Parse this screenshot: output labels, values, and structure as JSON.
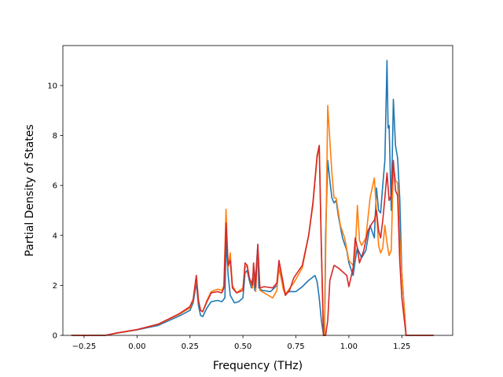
{
  "chart_data": {
    "type": "line",
    "xlabel": "Frequency (THz)",
    "ylabel": "Partial Density of States",
    "xlim": [
      -0.35,
      1.49
    ],
    "ylim": [
      0,
      11.6
    ],
    "xticks": [
      -0.25,
      0.0,
      0.25,
      0.5,
      0.75,
      1.0,
      1.25
    ],
    "xtick_labels": [
      "−0.25",
      "0.00",
      "0.25",
      "0.50",
      "0.75",
      "1.00",
      "1.25"
    ],
    "yticks": [
      0,
      2,
      4,
      6,
      8,
      10
    ],
    "ytick_labels": [
      "0",
      "2",
      "4",
      "6",
      "8",
      "10"
    ],
    "grid": false,
    "series": [
      {
        "color": "#1f77b4",
        "points": [
          [
            -0.31,
            0
          ],
          [
            -0.15,
            0
          ],
          [
            -0.1,
            0.08
          ],
          [
            0,
            0.22
          ],
          [
            0.1,
            0.4
          ],
          [
            0.2,
            0.78
          ],
          [
            0.25,
            1.0
          ],
          [
            0.265,
            1.3
          ],
          [
            0.28,
            2.1
          ],
          [
            0.29,
            1.2
          ],
          [
            0.3,
            0.8
          ],
          [
            0.31,
            0.75
          ],
          [
            0.33,
            1.1
          ],
          [
            0.35,
            1.35
          ],
          [
            0.38,
            1.4
          ],
          [
            0.4,
            1.35
          ],
          [
            0.415,
            1.5
          ],
          [
            0.42,
            3.8
          ],
          [
            0.43,
            2.4
          ],
          [
            0.44,
            1.6
          ],
          [
            0.46,
            1.3
          ],
          [
            0.48,
            1.35
          ],
          [
            0.5,
            1.5
          ],
          [
            0.51,
            2.5
          ],
          [
            0.52,
            2.6
          ],
          [
            0.53,
            2.2
          ],
          [
            0.54,
            1.9
          ],
          [
            0.55,
            2.6
          ],
          [
            0.555,
            1.8
          ],
          [
            0.57,
            3.6
          ],
          [
            0.575,
            1.9
          ],
          [
            0.59,
            1.8
          ],
          [
            0.63,
            1.75
          ],
          [
            0.66,
            2.0
          ],
          [
            0.67,
            2.7
          ],
          [
            0.69,
            1.9
          ],
          [
            0.7,
            1.7
          ],
          [
            0.72,
            1.75
          ],
          [
            0.75,
            1.75
          ],
          [
            0.78,
            1.95
          ],
          [
            0.81,
            2.2
          ],
          [
            0.84,
            2.4
          ],
          [
            0.85,
            2.15
          ],
          [
            0.86,
            1.5
          ],
          [
            0.87,
            0.6
          ],
          [
            0.88,
            0
          ],
          [
            0.885,
            0
          ],
          [
            0.89,
            4.0
          ],
          [
            0.9,
            7.0
          ],
          [
            0.91,
            6.2
          ],
          [
            0.92,
            5.5
          ],
          [
            0.93,
            5.3
          ],
          [
            0.94,
            5.4
          ],
          [
            0.95,
            4.8
          ],
          [
            0.97,
            3.9
          ],
          [
            0.99,
            3.4
          ],
          [
            1.0,
            2.9
          ],
          [
            1.02,
            2.4
          ],
          [
            1.03,
            3.0
          ],
          [
            1.04,
            3.5
          ],
          [
            1.05,
            3.3
          ],
          [
            1.06,
            3.1
          ],
          [
            1.08,
            3.4
          ],
          [
            1.1,
            4.4
          ],
          [
            1.12,
            3.9
          ],
          [
            1.13,
            5.9
          ],
          [
            1.14,
            5.0
          ],
          [
            1.15,
            4.9
          ],
          [
            1.16,
            6.0
          ],
          [
            1.17,
            7.0
          ],
          [
            1.18,
            11.0
          ],
          [
            1.185,
            8.3
          ],
          [
            1.19,
            8.4
          ],
          [
            1.2,
            5.0
          ],
          [
            1.21,
            9.45
          ],
          [
            1.22,
            7.6
          ],
          [
            1.23,
            7.1
          ],
          [
            1.24,
            5.5
          ],
          [
            1.25,
            2.5
          ],
          [
            1.27,
            0
          ],
          [
            1.4,
            0
          ]
        ]
      },
      {
        "color": "#ff7f0e",
        "points": [
          [
            -0.31,
            0
          ],
          [
            -0.15,
            0
          ],
          [
            -0.1,
            0.08
          ],
          [
            0,
            0.23
          ],
          [
            0.1,
            0.44
          ],
          [
            0.2,
            0.85
          ],
          [
            0.25,
            1.1
          ],
          [
            0.265,
            1.4
          ],
          [
            0.28,
            2.3
          ],
          [
            0.29,
            1.4
          ],
          [
            0.3,
            1.0
          ],
          [
            0.31,
            0.95
          ],
          [
            0.33,
            1.4
          ],
          [
            0.35,
            1.75
          ],
          [
            0.38,
            1.85
          ],
          [
            0.4,
            1.8
          ],
          [
            0.41,
            2.0
          ],
          [
            0.42,
            5.05
          ],
          [
            0.43,
            2.7
          ],
          [
            0.44,
            3.3
          ],
          [
            0.45,
            2.0
          ],
          [
            0.47,
            1.7
          ],
          [
            0.5,
            1.9
          ],
          [
            0.51,
            2.7
          ],
          [
            0.52,
            2.8
          ],
          [
            0.53,
            2.3
          ],
          [
            0.545,
            1.9
          ],
          [
            0.55,
            2.7
          ],
          [
            0.56,
            1.75
          ],
          [
            0.57,
            3.5
          ],
          [
            0.58,
            1.8
          ],
          [
            0.6,
            1.7
          ],
          [
            0.64,
            1.5
          ],
          [
            0.66,
            1.8
          ],
          [
            0.67,
            2.8
          ],
          [
            0.69,
            1.85
          ],
          [
            0.7,
            1.65
          ],
          [
            0.74,
            2.1
          ],
          [
            0.78,
            2.7
          ],
          [
            0.81,
            4.0
          ],
          [
            0.83,
            5.2
          ],
          [
            0.85,
            7.1
          ],
          [
            0.86,
            7.55
          ],
          [
            0.87,
            3.5
          ],
          [
            0.88,
            0
          ],
          [
            0.885,
            0
          ],
          [
            0.9,
            9.2
          ],
          [
            0.91,
            7.8
          ],
          [
            0.92,
            6.5
          ],
          [
            0.93,
            5.5
          ],
          [
            0.94,
            5.5
          ],
          [
            0.96,
            4.4
          ],
          [
            0.98,
            3.9
          ],
          [
            1.0,
            3.0
          ],
          [
            1.02,
            2.8
          ],
          [
            1.03,
            3.3
          ],
          [
            1.04,
            5.2
          ],
          [
            1.05,
            3.8
          ],
          [
            1.06,
            3.6
          ],
          [
            1.08,
            3.9
          ],
          [
            1.1,
            5.5
          ],
          [
            1.12,
            6.3
          ],
          [
            1.13,
            5.0
          ],
          [
            1.14,
            3.6
          ],
          [
            1.15,
            3.3
          ],
          [
            1.16,
            3.5
          ],
          [
            1.17,
            4.4
          ],
          [
            1.18,
            3.7
          ],
          [
            1.19,
            3.2
          ],
          [
            1.2,
            3.4
          ],
          [
            1.21,
            6.8
          ],
          [
            1.22,
            6.2
          ],
          [
            1.23,
            6.1
          ],
          [
            1.24,
            4.0
          ],
          [
            1.25,
            2.5
          ],
          [
            1.27,
            0
          ],
          [
            1.4,
            0
          ]
        ]
      },
      {
        "color": "#d62728",
        "points": [
          [
            -0.31,
            0
          ],
          [
            -0.15,
            0
          ],
          [
            -0.1,
            0.09
          ],
          [
            0,
            0.23
          ],
          [
            0.1,
            0.45
          ],
          [
            0.2,
            0.87
          ],
          [
            0.25,
            1.15
          ],
          [
            0.265,
            1.45
          ],
          [
            0.28,
            2.4
          ],
          [
            0.29,
            1.4
          ],
          [
            0.3,
            1.0
          ],
          [
            0.31,
            0.95
          ],
          [
            0.33,
            1.35
          ],
          [
            0.35,
            1.7
          ],
          [
            0.38,
            1.75
          ],
          [
            0.4,
            1.7
          ],
          [
            0.41,
            1.9
          ],
          [
            0.42,
            4.5
          ],
          [
            0.43,
            2.8
          ],
          [
            0.44,
            3.0
          ],
          [
            0.45,
            1.9
          ],
          [
            0.47,
            1.7
          ],
          [
            0.5,
            1.8
          ],
          [
            0.51,
            2.9
          ],
          [
            0.52,
            2.8
          ],
          [
            0.53,
            2.3
          ],
          [
            0.545,
            2.0
          ],
          [
            0.55,
            2.9
          ],
          [
            0.56,
            1.9
          ],
          [
            0.57,
            3.65
          ],
          [
            0.58,
            1.9
          ],
          [
            0.6,
            1.95
          ],
          [
            0.64,
            1.9
          ],
          [
            0.66,
            2.1
          ],
          [
            0.67,
            3.0
          ],
          [
            0.69,
            2.1
          ],
          [
            0.7,
            1.6
          ],
          [
            0.72,
            1.8
          ],
          [
            0.74,
            2.3
          ],
          [
            0.78,
            2.8
          ],
          [
            0.81,
            4.0
          ],
          [
            0.83,
            5.3
          ],
          [
            0.85,
            7.2
          ],
          [
            0.86,
            7.6
          ],
          [
            0.87,
            3.5
          ],
          [
            0.88,
            0
          ],
          [
            0.89,
            0
          ],
          [
            0.9,
            0.6
          ],
          [
            0.91,
            2.2
          ],
          [
            0.93,
            2.8
          ],
          [
            0.95,
            2.7
          ],
          [
            0.97,
            2.55
          ],
          [
            0.99,
            2.4
          ],
          [
            1.0,
            1.95
          ],
          [
            1.02,
            2.7
          ],
          [
            1.03,
            3.9
          ],
          [
            1.04,
            3.5
          ],
          [
            1.05,
            2.9
          ],
          [
            1.07,
            3.4
          ],
          [
            1.09,
            4.2
          ],
          [
            1.11,
            4.5
          ],
          [
            1.12,
            4.6
          ],
          [
            1.13,
            5.0
          ],
          [
            1.14,
            4.2
          ],
          [
            1.15,
            3.9
          ],
          [
            1.16,
            4.6
          ],
          [
            1.17,
            5.5
          ],
          [
            1.18,
            6.5
          ],
          [
            1.19,
            5.4
          ],
          [
            1.2,
            5.6
          ],
          [
            1.21,
            7.0
          ],
          [
            1.22,
            5.8
          ],
          [
            1.23,
            5.6
          ],
          [
            1.24,
            3.0
          ],
          [
            1.25,
            1.5
          ],
          [
            1.27,
            0
          ],
          [
            1.4,
            0
          ]
        ]
      }
    ]
  }
}
